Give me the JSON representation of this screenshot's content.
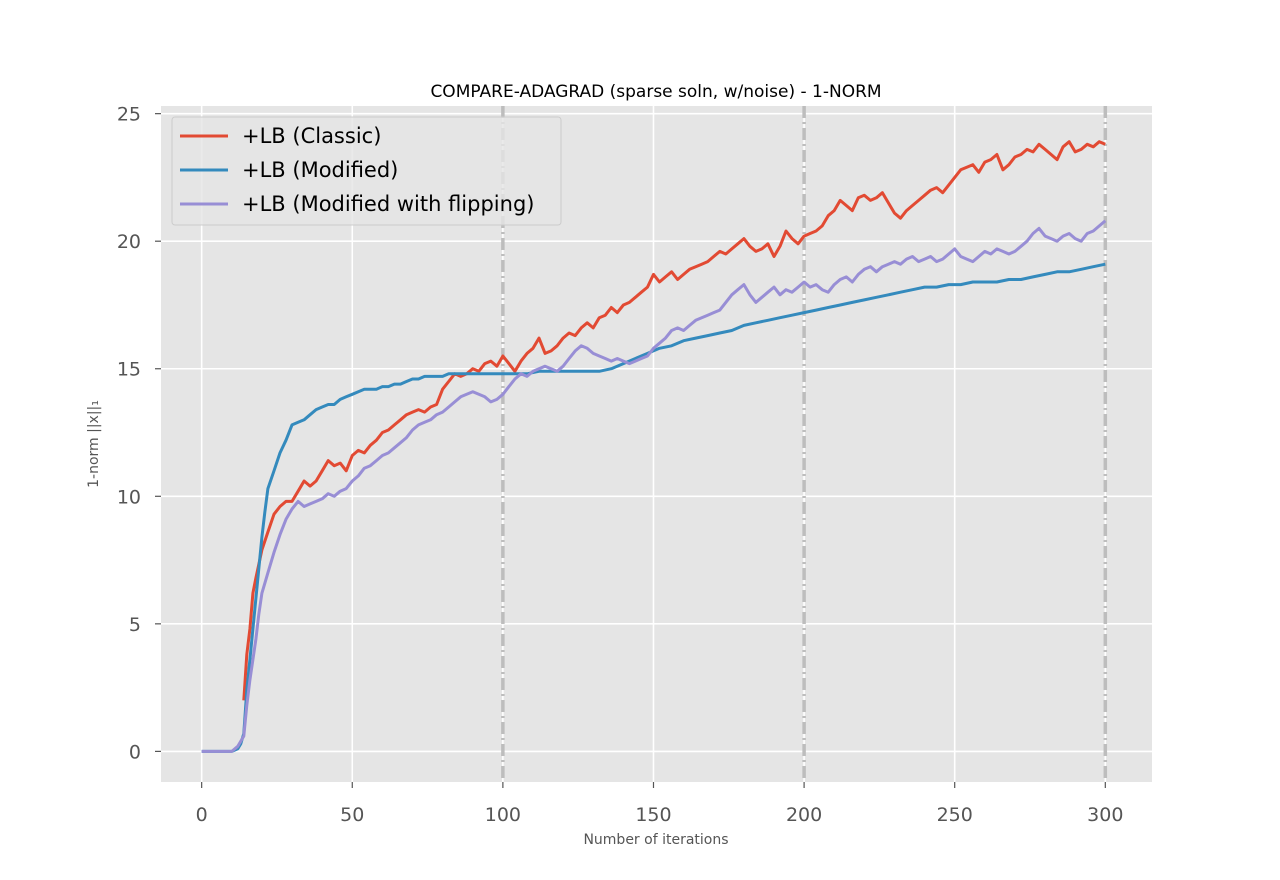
{
  "chart_data": {
    "type": "line",
    "title": "COMPARE-ADAGRAD (sparse soln, w/noise) - 1-NORM",
    "xlabel": "Number of iterations",
    "ylabel": "1-norm ||x||₁",
    "xlim": [
      -13.5,
      315.5
    ],
    "ylim": [
      -1.2,
      25.3
    ],
    "xticks": [
      0,
      50,
      100,
      150,
      200,
      250,
      300
    ],
    "yticks": [
      0,
      5,
      10,
      15,
      20,
      25
    ],
    "vlines": [
      100,
      200,
      300
    ],
    "grid": true,
    "legend": "top-left",
    "colors": {
      "plot_bg": "#e5e5e5",
      "grid": "#ffffff",
      "vline": "#bdbdbd",
      "text": "#555555"
    },
    "series": [
      {
        "name": "+LB (Classic)",
        "color": "#e24a33",
        "x": [
          14,
          15,
          16,
          17,
          18,
          20,
          22,
          24,
          26,
          28,
          30,
          32,
          34,
          36,
          38,
          40,
          42,
          44,
          46,
          48,
          50,
          52,
          54,
          56,
          58,
          60,
          62,
          64,
          66,
          68,
          70,
          72,
          74,
          76,
          78,
          80,
          82,
          84,
          86,
          88,
          90,
          92,
          94,
          96,
          98,
          100,
          102,
          104,
          106,
          108,
          110,
          112,
          114,
          116,
          118,
          120,
          122,
          124,
          126,
          128,
          130,
          132,
          134,
          136,
          138,
          140,
          142,
          144,
          146,
          148,
          150,
          152,
          154,
          156,
          158,
          160,
          162,
          164,
          166,
          168,
          170,
          172,
          174,
          176,
          178,
          180,
          182,
          184,
          186,
          188,
          190,
          192,
          194,
          196,
          198,
          200,
          202,
          204,
          206,
          208,
          210,
          212,
          214,
          216,
          218,
          220,
          222,
          224,
          226,
          228,
          230,
          232,
          234,
          236,
          238,
          240,
          242,
          244,
          246,
          248,
          250,
          252,
          254,
          256,
          258,
          260,
          262,
          264,
          266,
          268,
          270,
          272,
          274,
          276,
          278,
          280,
          282,
          284,
          286,
          288,
          290,
          292,
          294,
          296,
          298,
          300
        ],
        "values": [
          2.0,
          3.8,
          4.8,
          6.2,
          6.8,
          7.9,
          8.6,
          9.3,
          9.6,
          9.8,
          9.8,
          10.2,
          10.6,
          10.4,
          10.6,
          11.0,
          11.4,
          11.2,
          11.3,
          11.0,
          11.6,
          11.8,
          11.7,
          12.0,
          12.2,
          12.5,
          12.6,
          12.8,
          13.0,
          13.2,
          13.3,
          13.4,
          13.3,
          13.5,
          13.6,
          14.2,
          14.5,
          14.8,
          14.7,
          14.8,
          15.0,
          14.9,
          15.2,
          15.3,
          15.1,
          15.5,
          15.2,
          14.9,
          15.3,
          15.6,
          15.8,
          16.2,
          15.6,
          15.7,
          15.9,
          16.2,
          16.4,
          16.3,
          16.6,
          16.8,
          16.6,
          17.0,
          17.1,
          17.4,
          17.2,
          17.5,
          17.6,
          17.8,
          18.0,
          18.2,
          18.7,
          18.4,
          18.6,
          18.8,
          18.5,
          18.7,
          18.9,
          19.0,
          19.1,
          19.2,
          19.4,
          19.6,
          19.5,
          19.7,
          19.9,
          20.1,
          19.8,
          19.6,
          19.7,
          19.9,
          19.4,
          19.8,
          20.4,
          20.1,
          19.9,
          20.2,
          20.3,
          20.4,
          20.6,
          21.0,
          21.2,
          21.6,
          21.4,
          21.2,
          21.7,
          21.8,
          21.6,
          21.7,
          21.9,
          21.5,
          21.1,
          20.9,
          21.2,
          21.4,
          21.6,
          21.8,
          22.0,
          22.1,
          21.9,
          22.2,
          22.5,
          22.8,
          22.9,
          23.0,
          22.7,
          23.1,
          23.2,
          23.4,
          22.8,
          23.0,
          23.3,
          23.4,
          23.6,
          23.5,
          23.8,
          23.6,
          23.4,
          23.2,
          23.7,
          23.9,
          23.5,
          23.6,
          23.8,
          23.7,
          23.9,
          23.8
        ]
      },
      {
        "name": "+LB (Modified)",
        "color": "#348abd",
        "x": [
          0,
          5,
          10,
          12,
          13,
          14,
          15,
          16,
          17,
          18,
          19,
          20,
          21,
          22,
          24,
          26,
          28,
          30,
          32,
          34,
          36,
          38,
          40,
          42,
          44,
          46,
          48,
          50,
          52,
          54,
          56,
          58,
          60,
          62,
          64,
          66,
          68,
          70,
          72,
          74,
          76,
          78,
          80,
          82,
          84,
          86,
          88,
          90,
          92,
          94,
          96,
          98,
          100,
          104,
          108,
          112,
          116,
          120,
          124,
          128,
          132,
          136,
          140,
          144,
          148,
          152,
          156,
          160,
          164,
          168,
          172,
          176,
          180,
          184,
          188,
          192,
          196,
          200,
          204,
          208,
          212,
          216,
          220,
          224,
          228,
          232,
          236,
          240,
          244,
          248,
          252,
          256,
          260,
          264,
          268,
          272,
          276,
          280,
          284,
          288,
          292,
          296,
          300
        ],
        "values": [
          0,
          0,
          0,
          0.1,
          0.3,
          0.7,
          2.4,
          3.6,
          4.8,
          6.0,
          7.2,
          8.4,
          9.4,
          10.3,
          11.0,
          11.7,
          12.2,
          12.8,
          12.9,
          13.0,
          13.2,
          13.4,
          13.5,
          13.6,
          13.6,
          13.8,
          13.9,
          14.0,
          14.1,
          14.2,
          14.2,
          14.2,
          14.3,
          14.3,
          14.4,
          14.4,
          14.5,
          14.6,
          14.6,
          14.7,
          14.7,
          14.7,
          14.7,
          14.8,
          14.8,
          14.8,
          14.8,
          14.8,
          14.8,
          14.8,
          14.8,
          14.8,
          14.8,
          14.8,
          14.8,
          14.9,
          14.9,
          14.9,
          14.9,
          14.9,
          14.9,
          15.0,
          15.2,
          15.4,
          15.6,
          15.8,
          15.9,
          16.1,
          16.2,
          16.3,
          16.4,
          16.5,
          16.7,
          16.8,
          16.9,
          17.0,
          17.1,
          17.2,
          17.3,
          17.4,
          17.5,
          17.6,
          17.7,
          17.8,
          17.9,
          18.0,
          18.1,
          18.2,
          18.2,
          18.3,
          18.3,
          18.4,
          18.4,
          18.4,
          18.5,
          18.5,
          18.6,
          18.7,
          18.8,
          18.8,
          18.9,
          19.0,
          19.1
        ]
      },
      {
        "name": "+LB (Modified with flipping)",
        "color": "#988ed5",
        "x": [
          0,
          5,
          10,
          12,
          14,
          15,
          16,
          17,
          18,
          19,
          20,
          22,
          24,
          26,
          28,
          30,
          32,
          34,
          36,
          38,
          40,
          42,
          44,
          46,
          48,
          50,
          52,
          54,
          56,
          58,
          60,
          62,
          64,
          66,
          68,
          70,
          72,
          74,
          76,
          78,
          80,
          82,
          84,
          86,
          88,
          90,
          92,
          94,
          96,
          98,
          100,
          102,
          104,
          106,
          108,
          110,
          112,
          114,
          116,
          118,
          120,
          122,
          124,
          126,
          128,
          130,
          132,
          134,
          136,
          138,
          140,
          142,
          144,
          146,
          148,
          150,
          152,
          154,
          156,
          158,
          160,
          162,
          164,
          166,
          168,
          170,
          172,
          174,
          176,
          178,
          180,
          182,
          184,
          186,
          188,
          190,
          192,
          194,
          196,
          198,
          200,
          202,
          204,
          206,
          208,
          210,
          212,
          214,
          216,
          218,
          220,
          222,
          224,
          226,
          228,
          230,
          232,
          234,
          236,
          238,
          240,
          242,
          244,
          246,
          248,
          250,
          252,
          254,
          256,
          258,
          260,
          262,
          264,
          266,
          268,
          270,
          272,
          274,
          276,
          278,
          280,
          282,
          284,
          286,
          288,
          290,
          292,
          294,
          296,
          298,
          300
        ],
        "values": [
          0,
          0,
          0,
          0.2,
          0.6,
          1.8,
          2.8,
          3.6,
          4.4,
          5.4,
          6.2,
          7.0,
          7.8,
          8.5,
          9.1,
          9.5,
          9.8,
          9.6,
          9.7,
          9.8,
          9.9,
          10.1,
          10.0,
          10.2,
          10.3,
          10.6,
          10.8,
          11.1,
          11.2,
          11.4,
          11.6,
          11.7,
          11.9,
          12.1,
          12.3,
          12.6,
          12.8,
          12.9,
          13.0,
          13.2,
          13.3,
          13.5,
          13.7,
          13.9,
          14.0,
          14.1,
          14.0,
          13.9,
          13.7,
          13.8,
          14.0,
          14.3,
          14.6,
          14.8,
          14.7,
          14.9,
          15.0,
          15.1,
          15.0,
          14.9,
          15.1,
          15.4,
          15.7,
          15.9,
          15.8,
          15.6,
          15.5,
          15.4,
          15.3,
          15.4,
          15.3,
          15.2,
          15.3,
          15.4,
          15.5,
          15.8,
          16.0,
          16.2,
          16.5,
          16.6,
          16.5,
          16.7,
          16.9,
          17.0,
          17.1,
          17.2,
          17.3,
          17.6,
          17.9,
          18.1,
          18.3,
          17.9,
          17.6,
          17.8,
          18.0,
          18.2,
          17.9,
          18.1,
          18.0,
          18.2,
          18.4,
          18.2,
          18.3,
          18.1,
          18.0,
          18.3,
          18.5,
          18.6,
          18.4,
          18.7,
          18.9,
          19.0,
          18.8,
          19.0,
          19.1,
          19.2,
          19.1,
          19.3,
          19.4,
          19.2,
          19.3,
          19.4,
          19.2,
          19.3,
          19.5,
          19.7,
          19.4,
          19.3,
          19.2,
          19.4,
          19.6,
          19.5,
          19.7,
          19.6,
          19.5,
          19.6,
          19.8,
          20.0,
          20.3,
          20.5,
          20.2,
          20.1,
          20.0,
          20.2,
          20.3,
          20.1,
          20.0,
          20.3,
          20.4,
          20.6,
          20.8
        ]
      }
    ]
  }
}
